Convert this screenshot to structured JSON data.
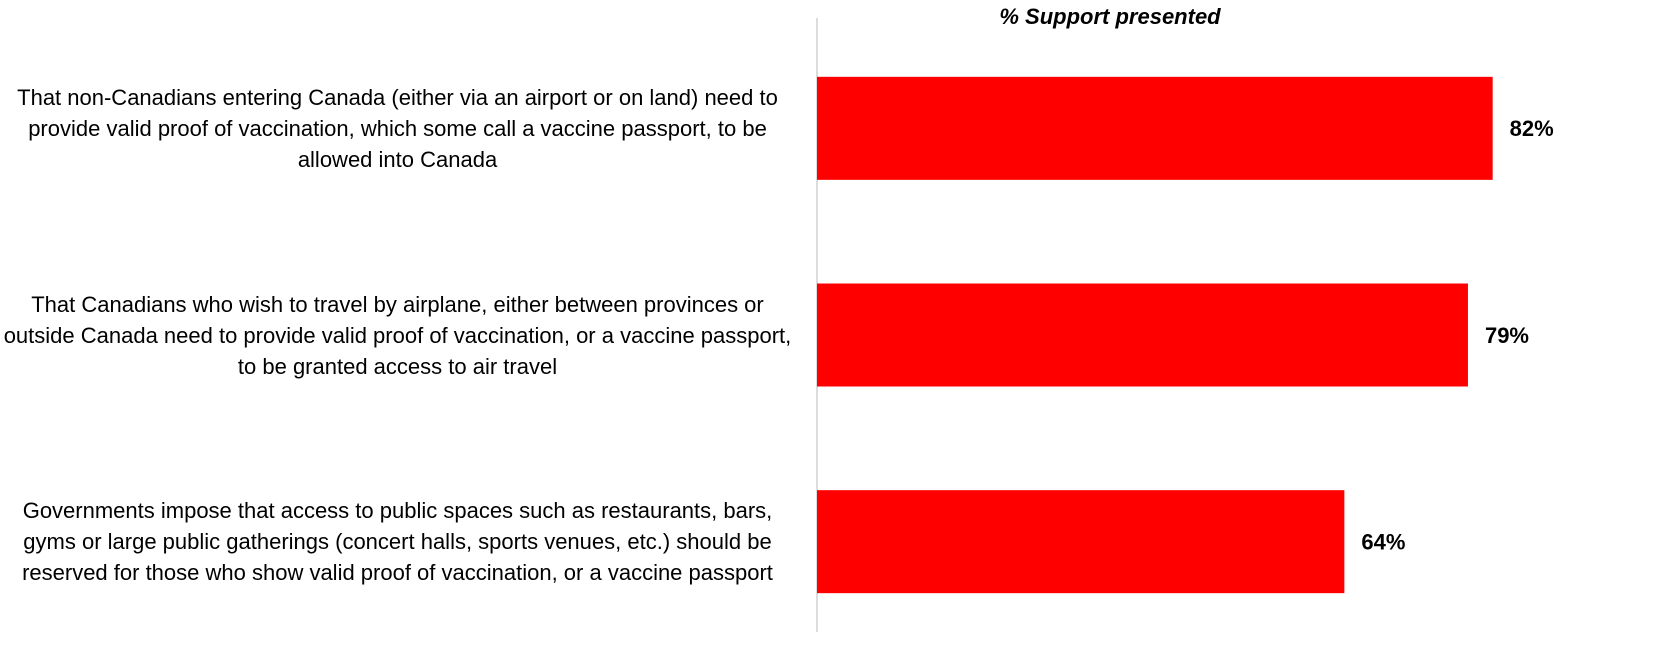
{
  "chart_data": {
    "type": "hbar",
    "title": "% Support presented",
    "categories": [
      "That non-Canadians entering Canada (either via an airport or on land) need to provide valid proof of vaccination, which some call a vaccine passport, to be allowed into Canada",
      "That Canadians who wish to travel by airplane, either between provinces or outside Canada need to provide valid proof of vaccination, or a vaccine passport, to be granted access to air travel",
      "Governments impose that access to public spaces such as restaurants, bars, gyms or large public gatherings (concert halls, sports venues, etc.) should be reserved for those who show valid proof of vaccination, or a vaccine passport"
    ],
    "values": [
      82,
      79,
      64
    ],
    "value_labels": [
      "82%",
      "79%",
      "64%"
    ],
    "color": "#ff0000",
    "xlim": [
      0,
      100
    ]
  }
}
